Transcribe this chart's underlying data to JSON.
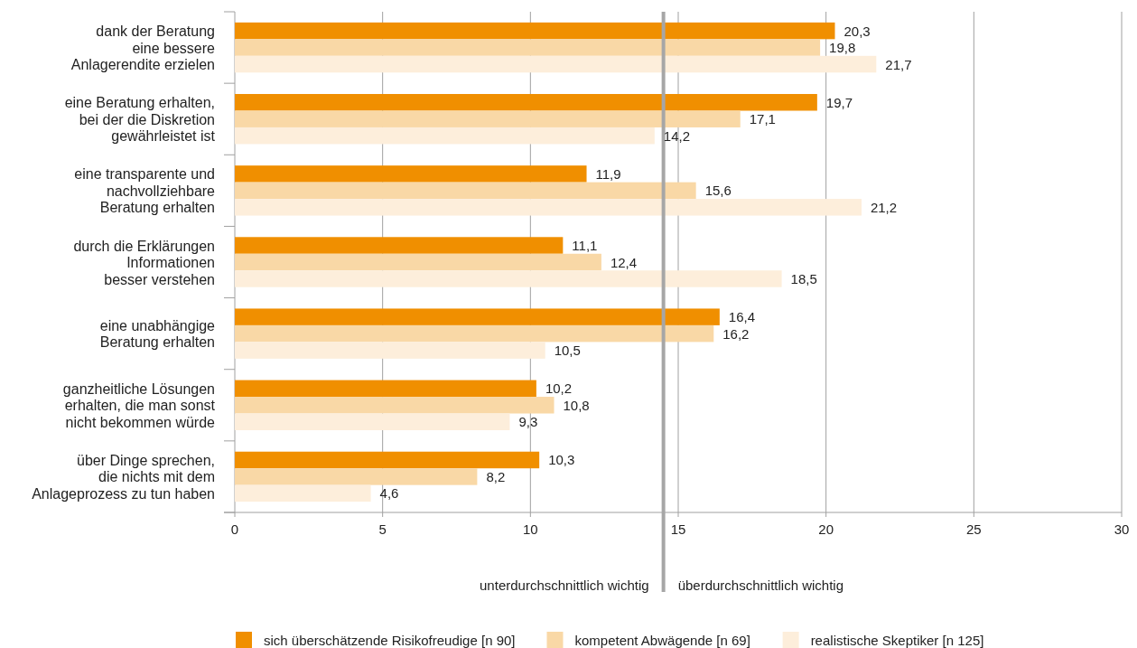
{
  "chart_data": {
    "type": "bar",
    "orientation": "horizontal",
    "categories": [
      "dank der Beratung\neine bessere\nAnlagerendite erzielen",
      "eine Beratung erhalten,\nbei der die Diskretion\ngewährleistet ist",
      "eine transparente und\nnachvollziehbare\nBeratung erhalten",
      "durch die Erklärungen\nInformationen\nbesser verstehen",
      "eine unabhängige\nBeratung erhalten",
      "ganzheitliche Lösungen\nerhalten, die man sonst\nnicht bekommen würde",
      "über Dinge sprechen,\ndie nichts mit dem\nAnlageprozess zu tun haben"
    ],
    "series": [
      {
        "name": "sich überschätzende Risikofreudige [n 90]",
        "color": "#f08f00",
        "values": [
          20.3,
          19.7,
          11.9,
          11.1,
          16.4,
          10.2,
          10.3
        ],
        "value_labels": [
          "20,3",
          "19,7",
          "11,9",
          "11,1",
          "16,4",
          "10,2",
          "10,3"
        ]
      },
      {
        "name": "kompetent Abwägende [n 69]",
        "color": "#f9d8a6",
        "values": [
          19.8,
          17.1,
          15.6,
          12.4,
          16.2,
          10.8,
          8.2
        ],
        "value_labels": [
          "19,8",
          "17,1",
          "15,6",
          "12,4",
          "16,2",
          "10,8",
          "8,2"
        ]
      },
      {
        "name": "realistische Skeptiker [n 125]",
        "color": "#fdeedb",
        "values": [
          21.7,
          14.2,
          21.2,
          18.5,
          10.5,
          9.3,
          4.6
        ],
        "value_labels": [
          "21,7",
          "14,2",
          "21,2",
          "18,5",
          "10,5",
          "9,3",
          "4,6"
        ]
      }
    ],
    "xlim": [
      0,
      30
    ],
    "xticks": [
      0,
      5,
      10,
      15,
      20,
      25,
      30
    ],
    "grid": "x",
    "legend": "bottom",
    "ref_lines": [
      {
        "axis": "x",
        "value": 14.5,
        "color": "#a6a6a6"
      }
    ],
    "annotations": [
      {
        "text": "unterdurchschnittlich wichtig",
        "x": 14.5
      },
      {
        "text": "überdurchschnittlich wichtig",
        "x": 14.5
      }
    ]
  }
}
